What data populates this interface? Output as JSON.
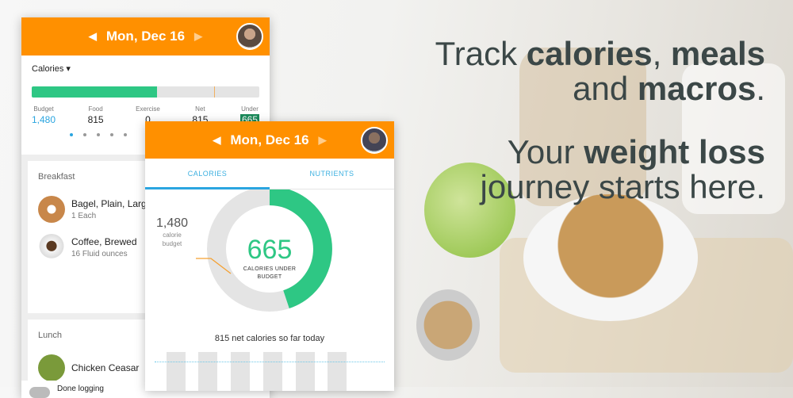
{
  "back_phone": {
    "header": {
      "date": "Mon, Dec 16",
      "prev": "◀",
      "next": "▶"
    },
    "summary": {
      "selector": "Calories",
      "columns": [
        {
          "label": "Budget",
          "value": "1,480"
        },
        {
          "label": "Food",
          "value": "815"
        },
        {
          "label": "Exercise",
          "value": "0"
        },
        {
          "label": "Net",
          "value": "815"
        },
        {
          "label": "Under",
          "value": "665"
        }
      ],
      "progress_fraction": 0.55
    },
    "meals": [
      {
        "title": "Breakfast",
        "items": [
          {
            "name": "Bagel, Plain, Large",
            "qty": "1 Each",
            "icon": "bagel-icon"
          },
          {
            "name": "Coffee, Brewed",
            "qty": "16 Fluid ounces",
            "icon": "coffee-icon"
          }
        ]
      },
      {
        "title": "Lunch",
        "items": [
          {
            "name": "Chicken Ceasar",
            "icon": "salad-icon"
          }
        ]
      }
    ],
    "footer": "Done logging"
  },
  "front_phone": {
    "header": {
      "date": "Mon, Dec 16",
      "prev": "◀",
      "next": "▶"
    },
    "tabs": [
      "CALORIES",
      "NUTRIENTS"
    ],
    "active_tab": "CALORIES",
    "budget_value": "1,480",
    "budget_label1": "calorie",
    "budget_label2": "budget",
    "remaining_value": "665",
    "remaining_label1": "CALORIES UNDER",
    "remaining_label2": "BUDGET",
    "net_text": "815 net calories so far today",
    "donut": {
      "budget": 1480,
      "under": 665
    },
    "colors": {
      "header": "#ff9000",
      "green": "#2ec784",
      "accent": "#2aa5e0"
    }
  },
  "tagline": {
    "l1a": "Track ",
    "l1b": "calories",
    "l1c": ", ",
    "l1d": "meals",
    "l2a": "and ",
    "l2b": "macros",
    "l2c": ".",
    "l3a": "Your ",
    "l3b": "weight loss",
    "l4": "journey starts here."
  }
}
